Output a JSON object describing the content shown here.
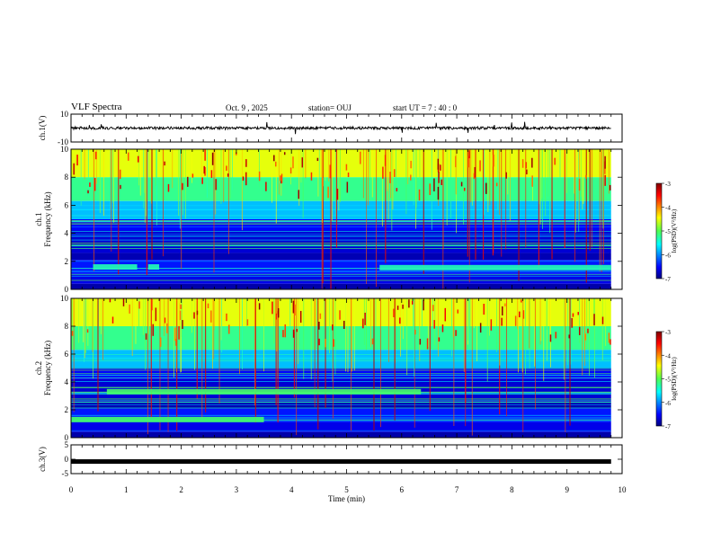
{
  "header": {
    "title": "VLF Spectra",
    "date": "Oct. 9 , 2025",
    "station": "station= OUJ",
    "start_time": "start  UT =  7 : 40 : 0"
  },
  "chart_data": [
    {
      "type": "line",
      "name": "ch1-waveform",
      "ylabel": "ch.1(V)",
      "ylim": [
        -10,
        10
      ],
      "yticks": [
        10,
        -10
      ],
      "baseline": 0,
      "xlim": [
        0,
        10
      ],
      "data_end_min": 9.8
    },
    {
      "type": "heatmap",
      "name": "ch1-spectrogram",
      "ylabel": "ch.1\nFrequency  (kHz)",
      "ylim": [
        0,
        10
      ],
      "yticks": [
        0,
        2,
        4,
        6,
        8,
        10
      ],
      "xlim": [
        0,
        10
      ],
      "colorbar": {
        "label": "log(PSD)(V²/Hz)",
        "range": [
          -7,
          -3
        ],
        "ticks": [
          "-3",
          "-4",
          "-5",
          "-6",
          "-7"
        ]
      },
      "bands_khz": [
        {
          "from_min": 0.4,
          "to_min": 1.2,
          "freq": 1.6
        },
        {
          "from_min": 1.4,
          "to_min": 1.6,
          "freq": 1.6
        },
        {
          "from_min": 5.6,
          "to_min": 9.8,
          "freq": 1.55
        }
      ]
    },
    {
      "type": "heatmap",
      "name": "ch2-spectrogram",
      "ylabel": "ch.2\nFrequency  (kHz)",
      "ylim": [
        0,
        10
      ],
      "yticks": [
        0,
        2,
        4,
        6,
        8,
        10
      ],
      "xlim": [
        0,
        10
      ],
      "colorbar": {
        "label": "log(PSD)(V²/Hz)",
        "range": [
          -7,
          -3
        ],
        "ticks": [
          "-3",
          "-4",
          "-5",
          "-6",
          "-7"
        ]
      },
      "bands_khz": [
        {
          "from_min": 0.65,
          "to_min": 6.35,
          "freq": 3.3
        },
        {
          "from_min": 0.0,
          "to_min": 3.5,
          "freq": 1.3
        }
      ]
    },
    {
      "type": "line",
      "name": "ch3-waveform",
      "ylabel": "ch.3(V)",
      "ylim": [
        -5,
        5
      ],
      "yticks": [
        5,
        0,
        -5
      ],
      "baseline": -0.8,
      "xlim": [
        0,
        10
      ],
      "data_end_min": 9.8
    }
  ],
  "x_axis": {
    "label": "Time  (min)",
    "range": [
      0,
      10
    ],
    "ticks": [
      "0",
      "1",
      "2",
      "3",
      "4",
      "5",
      "6",
      "7",
      "8",
      "9",
      "10"
    ]
  }
}
